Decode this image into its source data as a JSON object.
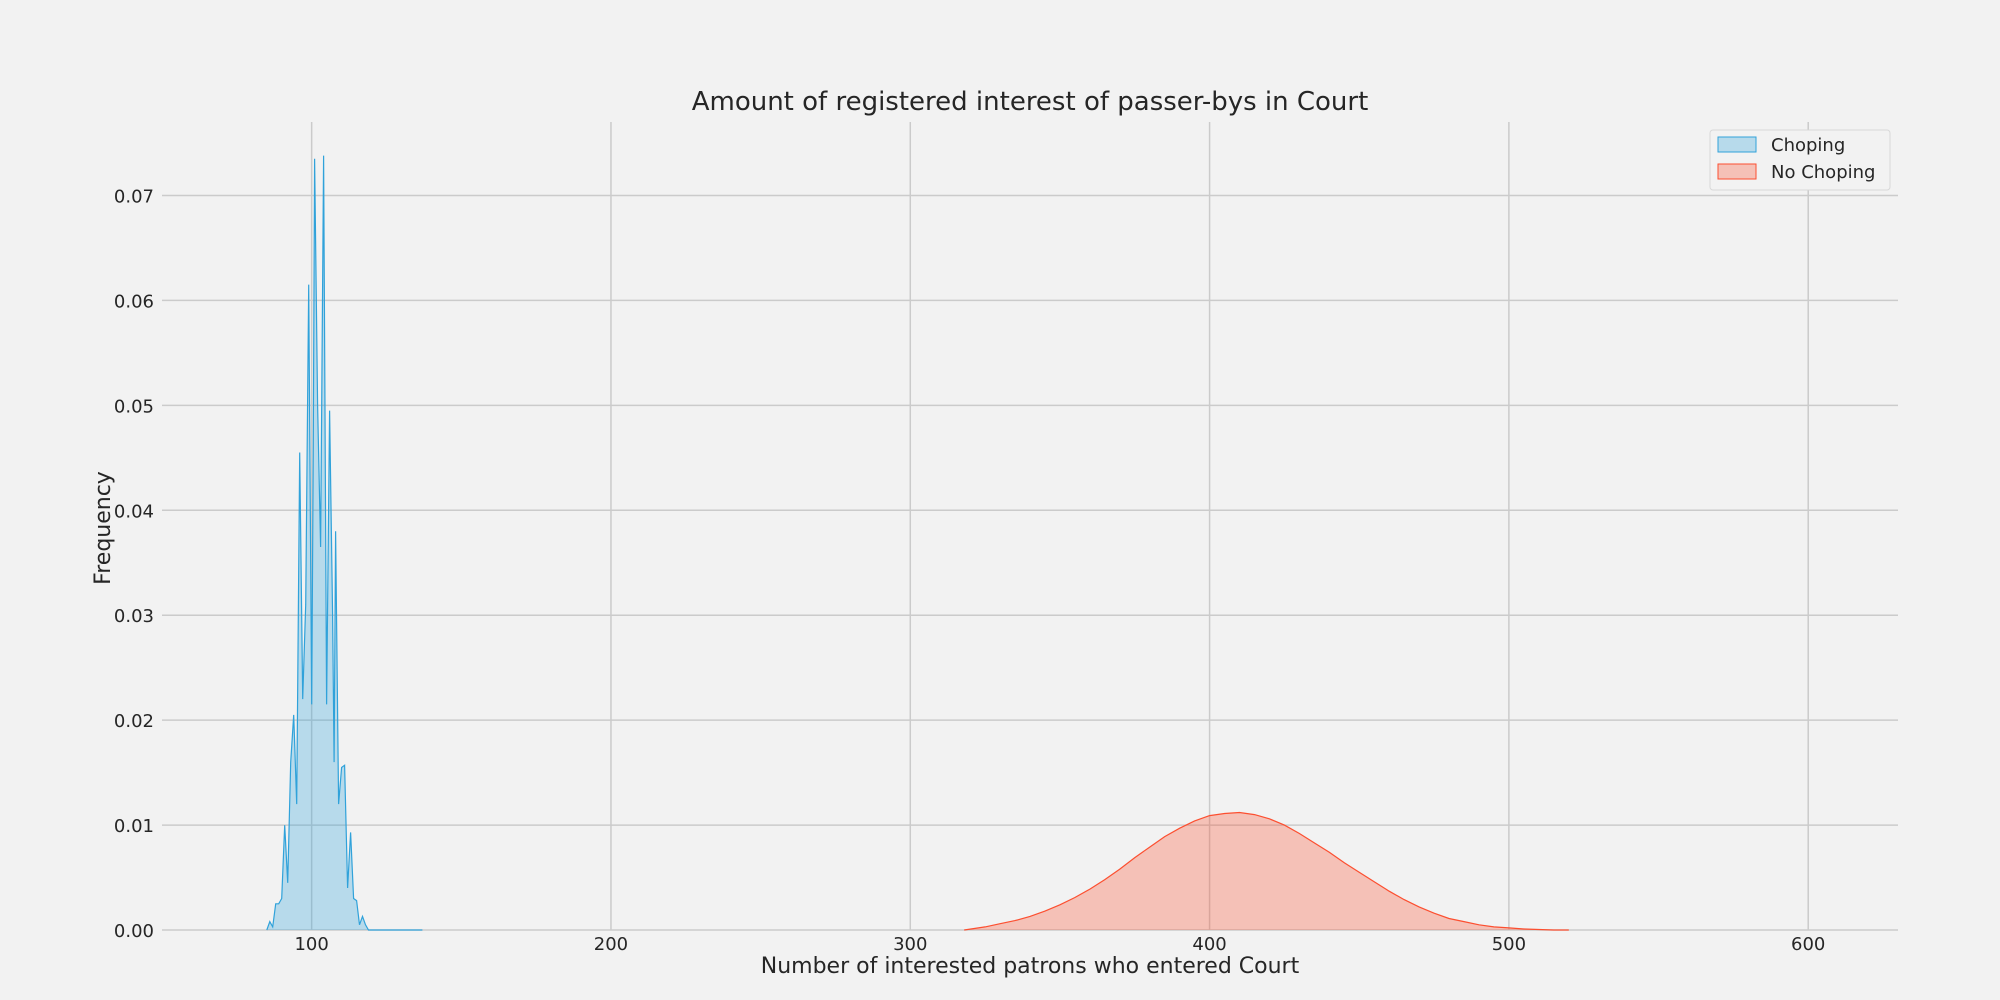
{
  "chart_data": {
    "type": "area",
    "title": "Amount of registered interest of passer-bys in Court",
    "xlabel": "Number of interested patrons who entered Court",
    "ylabel": "Frequency",
    "xlim": [
      50,
      630
    ],
    "ylim": [
      0,
      0.077
    ],
    "xticks": [
      100,
      200,
      300,
      400,
      500,
      600
    ],
    "yticks": [
      0.0,
      0.01,
      0.02,
      0.03,
      0.04,
      0.05,
      0.06,
      0.07
    ],
    "ytick_labels": [
      "0.00",
      "0.01",
      "0.02",
      "0.03",
      "0.04",
      "0.05",
      "0.06",
      "0.07"
    ],
    "grid": true,
    "legend": "top-right",
    "series": [
      {
        "name": "Choping",
        "color": "#30a2da",
        "x": [
          85,
          86,
          87,
          88,
          89,
          90,
          91,
          92,
          93,
          94,
          95,
          96,
          97,
          98,
          99,
          100,
          100.5,
          101,
          102,
          103,
          104,
          105,
          106,
          107,
          107.5,
          108,
          109,
          110,
          111,
          112,
          113,
          114,
          115,
          116,
          117,
          118,
          119,
          120,
          121,
          122,
          123,
          124,
          125,
          126,
          127,
          128,
          129,
          130,
          131,
          132,
          133,
          134,
          135,
          136,
          137
        ],
        "y": [
          0.0,
          0.0008,
          0.0003,
          0.0025,
          0.0025,
          0.003,
          0.01,
          0.0045,
          0.016,
          0.0205,
          0.012,
          0.0455,
          0.022,
          0.031,
          0.0615,
          0.0215,
          0.045,
          0.0735,
          0.05,
          0.0365,
          0.0738,
          0.0215,
          0.0495,
          0.03,
          0.016,
          0.038,
          0.012,
          0.0155,
          0.0157,
          0.004,
          0.0093,
          0.003,
          0.0028,
          0.0005,
          0.0013,
          0.0005,
          0.0,
          0.0,
          0.0,
          0.0,
          0.0,
          0.0,
          0.0,
          0.0,
          0.0,
          0.0,
          0.0,
          0.0,
          0.0,
          0.0,
          0.0,
          0.0,
          0.0,
          0.0,
          0.0
        ]
      },
      {
        "name": "No Choping",
        "color": "#fc4f30",
        "x": [
          318,
          325,
          330,
          335,
          340,
          345,
          350,
          355,
          360,
          365,
          370,
          375,
          380,
          385,
          390,
          395,
          400,
          405,
          410,
          415,
          420,
          425,
          430,
          435,
          440,
          445,
          450,
          455,
          460,
          465,
          470,
          475,
          480,
          485,
          490,
          495,
          500,
          505,
          510,
          515,
          520
        ],
        "y": [
          0.0,
          0.0003,
          0.0006,
          0.0009,
          0.0013,
          0.0018,
          0.0024,
          0.0031,
          0.0039,
          0.0048,
          0.0058,
          0.0069,
          0.0079,
          0.0089,
          0.0097,
          0.0104,
          0.0109,
          0.0111,
          0.0112,
          0.011,
          0.0106,
          0.01,
          0.0092,
          0.0083,
          0.0074,
          0.0064,
          0.0055,
          0.0046,
          0.0037,
          0.0029,
          0.0022,
          0.0016,
          0.0011,
          0.0008,
          0.0005,
          0.0003,
          0.0002,
          0.0001,
          5e-05,
          0.0,
          0.0
        ]
      }
    ]
  }
}
